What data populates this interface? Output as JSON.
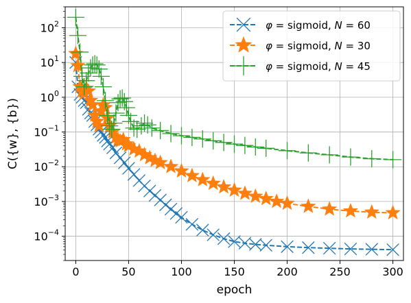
{
  "chart_data": {
    "type": "line",
    "title": "",
    "xlabel": "epoch",
    "ylabel": "C({w}, {b})",
    "yscale": "log",
    "xlim": [
      -10,
      310
    ],
    "ylim": [
      2e-05,
      400
    ],
    "grid": true,
    "legend_position": "top-right",
    "x_ticks": [
      0,
      50,
      100,
      150,
      200,
      250,
      300
    ],
    "x_tick_labels": [
      "0",
      "50",
      "100",
      "150",
      "200",
      "250",
      "300"
    ],
    "y_ticks": [
      0.0001,
      0.001,
      0.01,
      0.1,
      1,
      10,
      100
    ],
    "y_tick_labels": [
      {
        "base": "10",
        "exp": "−4"
      },
      {
        "base": "10",
        "exp": "−3"
      },
      {
        "base": "10",
        "exp": "−2"
      },
      {
        "base": "10",
        "exp": "−1"
      },
      {
        "base": "10",
        "exp": "0"
      },
      {
        "base": "10",
        "exp": "1"
      },
      {
        "base": "10",
        "exp": "2"
      }
    ],
    "series": [
      {
        "name": "φ = sigmoid,  N =  60",
        "label_parts": {
          "phi": "φ",
          "eq1": " = sigmoid,  ",
          "n": "N",
          "eq2": " =  60"
        },
        "color": "#1f77b4",
        "marker": "x",
        "points": [
          [
            0,
            10
          ],
          [
            2,
            2
          ],
          [
            4,
            1.2
          ],
          [
            6,
            1.0
          ],
          [
            8,
            0.8
          ],
          [
            10,
            0.7
          ],
          [
            12,
            0.45
          ],
          [
            14,
            0.35
          ],
          [
            16,
            0.3
          ],
          [
            18,
            0.2
          ],
          [
            20,
            0.16
          ],
          [
            22,
            0.12
          ],
          [
            24,
            0.1
          ],
          [
            26,
            0.08
          ],
          [
            28,
            0.07
          ],
          [
            30,
            0.055
          ],
          [
            32,
            0.045
          ],
          [
            35,
            0.035
          ],
          [
            38,
            0.025
          ],
          [
            42,
            0.018
          ],
          [
            46,
            0.013
          ],
          [
            50,
            0.009
          ],
          [
            55,
            0.006
          ],
          [
            60,
            0.004
          ],
          [
            65,
            0.0028
          ],
          [
            70,
            0.002
          ],
          [
            75,
            0.0015
          ],
          [
            80,
            0.0011
          ],
          [
            85,
            0.0008
          ],
          [
            90,
            0.0006
          ],
          [
            95,
            0.00045
          ],
          [
            100,
            0.00035
          ],
          [
            110,
            0.00022
          ],
          [
            120,
            0.00015
          ],
          [
            130,
            0.00011
          ],
          [
            140,
            8.5e-05
          ],
          [
            150,
            7e-05
          ],
          [
            160,
            6.3e-05
          ],
          [
            170,
            5.8e-05
          ],
          [
            180,
            5.5e-05
          ],
          [
            200,
            5e-05
          ],
          [
            220,
            4.7e-05
          ],
          [
            240,
            4.5e-05
          ],
          [
            260,
            4.3e-05
          ],
          [
            280,
            4.2e-05
          ],
          [
            300,
            4.1e-05
          ]
        ]
      },
      {
        "name": "φ = sigmoid,  N =  30",
        "label_parts": {
          "phi": "φ",
          "eq1": " = sigmoid,  ",
          "n": "N",
          "eq2": " =  30"
        },
        "color": "#ff7f0e",
        "marker": "star",
        "points": [
          [
            0,
            18
          ],
          [
            2,
            8
          ],
          [
            4,
            2
          ],
          [
            6,
            1.5
          ],
          [
            8,
            1.3
          ],
          [
            10,
            1.8
          ],
          [
            12,
            1.5
          ],
          [
            14,
            0.8
          ],
          [
            16,
            0.6
          ],
          [
            18,
            0.3
          ],
          [
            20,
            0.2
          ],
          [
            22,
            0.15
          ],
          [
            24,
            0.4
          ],
          [
            26,
            0.6
          ],
          [
            28,
            0.5
          ],
          [
            30,
            0.25
          ],
          [
            32,
            0.15
          ],
          [
            35,
            0.1
          ],
          [
            38,
            0.07
          ],
          [
            40,
            0.06
          ],
          [
            42,
            0.055
          ],
          [
            45,
            0.06
          ],
          [
            48,
            0.045
          ],
          [
            50,
            0.04
          ],
          [
            55,
            0.032
          ],
          [
            60,
            0.028
          ],
          [
            65,
            0.022
          ],
          [
            70,
            0.018
          ],
          [
            75,
            0.015
          ],
          [
            80,
            0.013
          ],
          [
            90,
            0.01
          ],
          [
            100,
            0.0075
          ],
          [
            110,
            0.0055
          ],
          [
            120,
            0.0042
          ],
          [
            130,
            0.0033
          ],
          [
            140,
            0.0026
          ],
          [
            150,
            0.0021
          ],
          [
            160,
            0.0017
          ],
          [
            170,
            0.0014
          ],
          [
            180,
            0.0012
          ],
          [
            190,
            0.001
          ],
          [
            200,
            0.00088
          ],
          [
            220,
            0.00072
          ],
          [
            240,
            0.0006
          ],
          [
            260,
            0.00053
          ],
          [
            280,
            0.00049
          ],
          [
            300,
            0.00047
          ]
        ]
      },
      {
        "name": "φ = sigmoid,  N =  45",
        "label_parts": {
          "phi": "φ",
          "eq1": " = sigmoid,  ",
          "n": "N",
          "eq2": " =  45"
        },
        "color": "#2ca02c",
        "marker": "plus",
        "points": [
          [
            0,
            200
          ],
          [
            2,
            60
          ],
          [
            4,
            20
          ],
          [
            6,
            4
          ],
          [
            8,
            2
          ],
          [
            10,
            3
          ],
          [
            12,
            5
          ],
          [
            14,
            7
          ],
          [
            16,
            8.5
          ],
          [
            18,
            9.2
          ],
          [
            20,
            8.5
          ],
          [
            22,
            6.5
          ],
          [
            24,
            4
          ],
          [
            26,
            2
          ],
          [
            28,
            0.8
          ],
          [
            30,
            0.3
          ],
          [
            32,
            0.15
          ],
          [
            34,
            0.12
          ],
          [
            36,
            0.18
          ],
          [
            38,
            0.35
          ],
          [
            40,
            0.7
          ],
          [
            42,
            0.9
          ],
          [
            44,
            0.95
          ],
          [
            46,
            0.75
          ],
          [
            48,
            0.5
          ],
          [
            50,
            0.3
          ],
          [
            52,
            0.2
          ],
          [
            55,
            0.13
          ],
          [
            58,
            0.12
          ],
          [
            62,
            0.15
          ],
          [
            65,
            0.18
          ],
          [
            68,
            0.16
          ],
          [
            72,
            0.13
          ],
          [
            80,
            0.11
          ],
          [
            90,
            0.09
          ],
          [
            100,
            0.078
          ],
          [
            110,
            0.07
          ],
          [
            120,
            0.063
          ],
          [
            130,
            0.056
          ],
          [
            140,
            0.05
          ],
          [
            150,
            0.045
          ],
          [
            160,
            0.041
          ],
          [
            170,
            0.037
          ],
          [
            180,
            0.034
          ],
          [
            200,
            0.029
          ],
          [
            220,
            0.025
          ],
          [
            240,
            0.022
          ],
          [
            260,
            0.019
          ],
          [
            280,
            0.017
          ],
          [
            300,
            0.016
          ]
        ]
      }
    ]
  }
}
